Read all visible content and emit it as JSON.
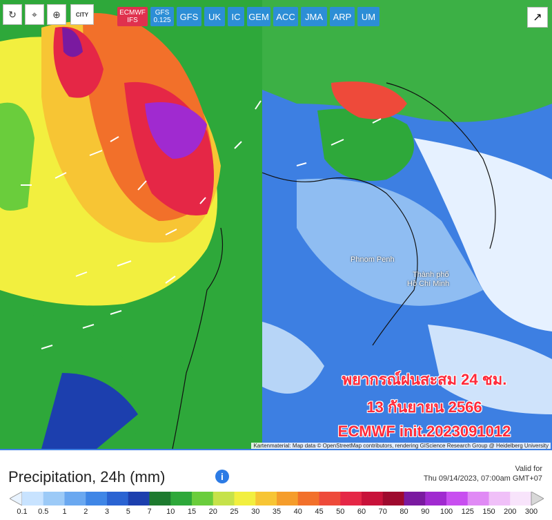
{
  "toolbar": {
    "city_label": "CITY",
    "models": [
      {
        "label": "ECMWF",
        "sub": "IFS",
        "active": true
      },
      {
        "label": "GFS",
        "sub": "0.125"
      },
      {
        "label": "GFS"
      },
      {
        "label": "UK"
      },
      {
        "label": "IC"
      },
      {
        "label": "GEM"
      },
      {
        "label": "ACC"
      },
      {
        "label": "JMA"
      },
      {
        "label": "ARP"
      },
      {
        "label": "UM"
      }
    ]
  },
  "map": {
    "overlay_line1": "พยากรณ์ฝนสะสม 24 ชม.",
    "overlay_line2": "13 กันยายน 2566",
    "overlay_line3": "ECMWF init.2023091012",
    "attribution": "Kartenmaterial: Map data © OpenStreetMap contributors, rendering GIScience Research Group @ Heidelberg University",
    "city1": "Phnom Penh",
    "city2a": "Thành phố",
    "city2b": "Hồ Chí Minh"
  },
  "legend": {
    "title": "Precipitation, 24h (mm)",
    "valid_line1": "Valid for",
    "valid_line2": "Thu 09/14/2023, 07:00am GMT+07",
    "ticks": [
      "0.1",
      "0.5",
      "1",
      "2",
      "3",
      "5",
      "7",
      "10",
      "15",
      "20",
      "25",
      "30",
      "35",
      "40",
      "45",
      "50",
      "60",
      "70",
      "80",
      "90",
      "100",
      "125",
      "150",
      "200",
      "300"
    ],
    "colors": [
      "#c8e3ff",
      "#9ccaf7",
      "#6aa8f0",
      "#3f86e6",
      "#2a63d2",
      "#1c3fae",
      "#1d7a2e",
      "#2ea83a",
      "#6acd3c",
      "#c6e24a",
      "#f2ef3f",
      "#f7c534",
      "#f59d2b",
      "#f2702a",
      "#ee4a3a",
      "#e52746",
      "#c8123a",
      "#9e0a2e",
      "#7a1aa0",
      "#a02ad0",
      "#c84ff0",
      "#e08af5",
      "#f0c0f8",
      "#f8e4fb",
      "#d8d8d8"
    ]
  }
}
